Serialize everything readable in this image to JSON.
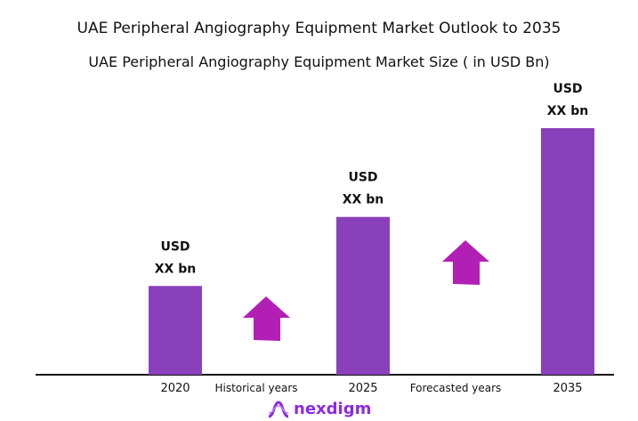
{
  "chart_data": {
    "type": "bar",
    "title": "UAE Peripheral Angiography Equipment Market Outlook to 2035",
    "subtitle": "UAE Peripheral  Angiography Equipment Market Size  ( in USD Bn)",
    "categories": [
      "2020",
      "2025",
      "2035"
    ],
    "relative_values": [
      36,
      64,
      100
    ],
    "data_labels": [
      [
        "USD",
        "XX bn"
      ],
      [
        "USD",
        "XX bn"
      ],
      [
        "USD",
        "XX bn"
      ]
    ],
    "period_labels": [
      "Historical years",
      "Forecasted years"
    ],
    "grid": false,
    "bar_color": "#8940BA",
    "arrow_color": "#B21FB5"
  },
  "logo": {
    "text": "nexdigm"
  }
}
